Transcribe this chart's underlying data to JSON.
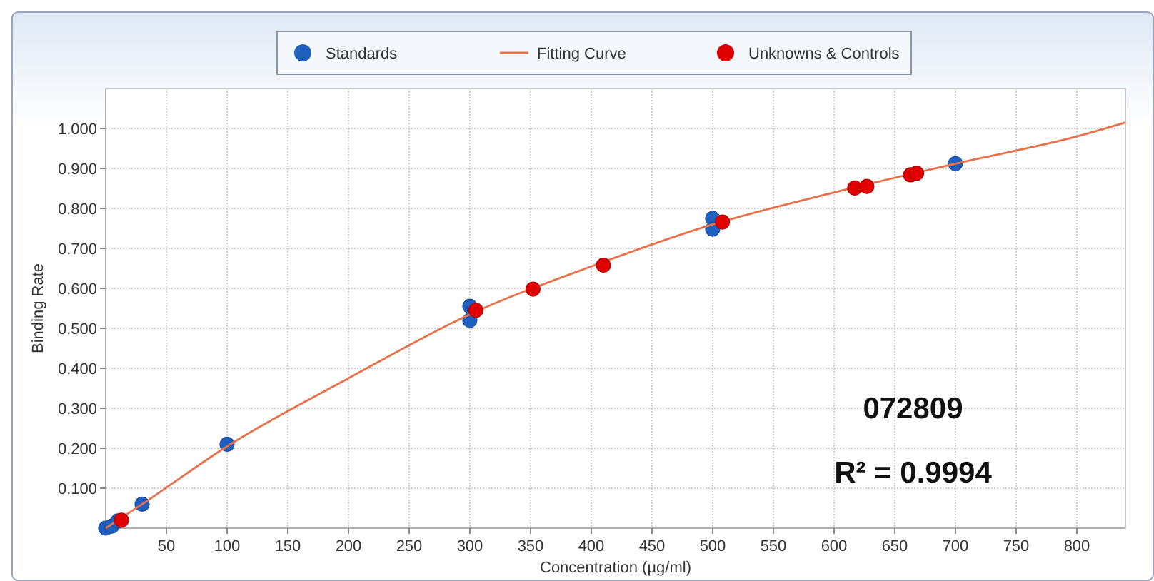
{
  "chart_data": {
    "type": "scatter",
    "xlabel": "Concentration (µg/ml)",
    "ylabel": "Binding Rate",
    "xlim": [
      0,
      840
    ],
    "xticks": [
      50,
      100,
      150,
      200,
      250,
      300,
      350,
      400,
      450,
      500,
      550,
      600,
      650,
      700,
      750,
      800
    ],
    "ylim": [
      0,
      1.1
    ],
    "yticks": [
      {
        "value": 0.1,
        "label": "0.100"
      },
      {
        "value": 0.2,
        "label": "0.200"
      },
      {
        "value": 0.3,
        "label": "0.300"
      },
      {
        "value": 0.4,
        "label": "0.400"
      },
      {
        "value": 0.5,
        "label": "0.500"
      },
      {
        "value": 0.6,
        "label": "0.600"
      },
      {
        "value": 0.7,
        "label": "0.700"
      },
      {
        "value": 0.8,
        "label": "0.800"
      },
      {
        "value": 0.9,
        "label": "0.900"
      },
      {
        "value": 1,
        "label": "1.000"
      }
    ],
    "grid": true,
    "legend": "top",
    "marker": "circle",
    "annotations": [
      "072809",
      "R² = 0.9994"
    ],
    "series": [
      {
        "name": "Standards",
        "color": "#1f5fbf",
        "x": [
          0,
          5,
          10,
          30,
          100,
          300,
          300,
          500,
          500,
          700
        ],
        "values": [
          0,
          0.005,
          0.018,
          0.06,
          0.21,
          0.555,
          0.52,
          0.775,
          0.748,
          0.912
        ]
      },
      {
        "name": "Fitting Curve",
        "type": "line",
        "marker": "none",
        "color": "#e8704a",
        "x": [
          0,
          30,
          100,
          200,
          300,
          400,
          500,
          600,
          700,
          800,
          840
        ],
        "values": [
          0,
          0.06,
          0.205,
          0.375,
          0.535,
          0.655,
          0.76,
          0.84,
          0.912,
          0.98,
          1.015
        ]
      },
      {
        "name": "Unknowns & Controls",
        "color": "#e00000",
        "x": [
          13,
          305,
          352,
          410,
          508,
          617,
          627,
          663,
          668
        ],
        "values": [
          0.02,
          0.545,
          0.598,
          0.658,
          0.766,
          0.851,
          0.855,
          0.884,
          0.888
        ]
      }
    ]
  }
}
